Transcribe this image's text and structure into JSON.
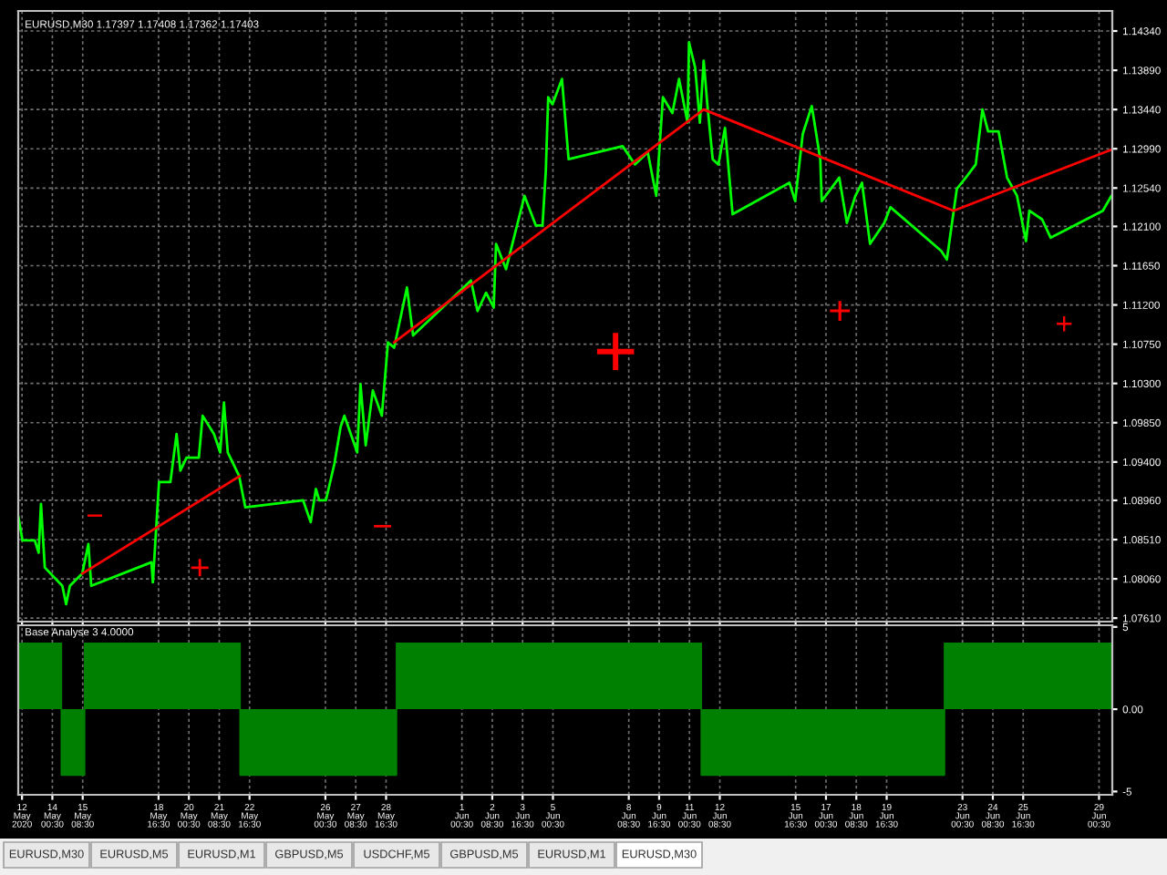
{
  "chart_data": [
    {
      "type": "line",
      "title": "EURUSD,M30 1.17397 1.17408 1.17362 1.17403",
      "xlim": [
        "2020-05-12T12:30",
        "2020-06-29T14:30"
      ],
      "ylim": [
        1.0757,
        1.1457
      ],
      "xticks": [
        {
          "value": "2020-05-12T16:30",
          "label": null
        },
        {
          "value": "2020-05-14T00:30",
          "label": null
        },
        {
          "value": "2020-05-15T08:30",
          "label": null
        },
        {
          "value": "2020-05-18T16:30",
          "label": null
        },
        {
          "value": "2020-05-20T00:30",
          "label": null
        },
        {
          "value": "2020-05-21T08:30",
          "label": null
        },
        {
          "value": "2020-05-22T16:30",
          "label": null
        },
        {
          "value": "2020-05-26T00:30",
          "label": null
        },
        {
          "value": "2020-05-27T08:30",
          "label": null
        },
        {
          "value": "2020-05-28T16:30",
          "label": null
        },
        {
          "value": "2020-06-01T00:30",
          "label": null
        },
        {
          "value": "2020-06-02T08:30",
          "label": null
        },
        {
          "value": "2020-06-03T16:30",
          "label": null
        },
        {
          "value": "2020-06-05T00:30",
          "label": null
        },
        {
          "value": "2020-06-08T08:30",
          "label": null
        },
        {
          "value": "2020-06-09T16:30",
          "label": null
        },
        {
          "value": "2020-06-11T00:30",
          "label": null
        },
        {
          "value": "2020-06-12T08:30",
          "label": null
        },
        {
          "value": "2020-06-15T16:30",
          "label": null
        },
        {
          "value": "2020-06-17T00:30",
          "label": null
        },
        {
          "value": "2020-06-18T08:30",
          "label": null
        },
        {
          "value": "2020-06-19T16:30",
          "label": null
        },
        {
          "value": "2020-06-23T00:30",
          "label": null
        },
        {
          "value": "2020-06-24T08:30",
          "label": null
        },
        {
          "value": "2020-06-25T16:30",
          "label": null
        },
        {
          "value": "2020-06-29T00:30",
          "label": null
        }
      ],
      "yticks": [
        {
          "value": 1.1434,
          "label": "1.14340"
        },
        {
          "value": 1.1389,
          "label": "1.13890"
        },
        {
          "value": 1.1344,
          "label": "1.13440"
        },
        {
          "value": 1.1299,
          "label": "1.12990"
        },
        {
          "value": 1.1254,
          "label": "1.12540"
        },
        {
          "value": 1.121,
          "label": "1.12100"
        },
        {
          "value": 1.1165,
          "label": "1.11650"
        },
        {
          "value": 1.112,
          "label": "1.11200"
        },
        {
          "value": 1.1075,
          "label": "1.10750"
        },
        {
          "value": 1.103,
          "label": "1.10300"
        },
        {
          "value": 1.0985,
          "label": "1.09850"
        },
        {
          "value": 1.094,
          "label": "1.09400"
        },
        {
          "value": 1.0896,
          "label": "1.08960"
        },
        {
          "value": 1.0851,
          "label": "1.08510"
        },
        {
          "value": 1.0806,
          "label": "1.08060"
        },
        {
          "value": 1.0761,
          "label": "1.07610"
        }
      ],
      "tick_labels": "y",
      "grid": true,
      "series": [
        {
          "color": "#00ff00",
          "x": [
            "2020-05-12T12:30",
            "2020-05-12T17:00",
            "2020-05-13T06:00",
            "2020-05-13T10:00",
            "2020-05-13T12:30",
            "2020-05-13T16:30",
            "2020-05-14T11:00",
            "2020-05-14T15:00",
            "2020-05-14T19:00",
            "2020-05-15T08:00",
            "2020-05-15T14:30",
            "2020-05-15T17:30",
            "2020-05-18T09:00",
            "2020-05-18T10:30",
            "2020-05-18T17:00",
            "2020-05-19T05:00",
            "2020-05-19T11:30",
            "2020-05-19T15:30",
            "2020-05-19T22:00",
            "2020-05-20T11:00",
            "2020-05-20T15:00",
            "2020-05-21T03:00",
            "2020-05-21T09:30",
            "2020-05-21T13:30",
            "2020-05-21T17:30",
            "2020-05-22T05:30",
            "2020-05-22T12:00",
            "2020-05-25T01:00",
            "2020-05-25T09:00",
            "2020-05-25T14:30",
            "2020-05-25T18:00",
            "2020-05-26T01:00",
            "2020-05-26T10:00",
            "2020-05-26T16:30",
            "2020-05-26T20:30",
            "2020-05-27T10:00",
            "2020-05-27T13:30",
            "2020-05-27T19:00",
            "2020-05-28T02:30",
            "2020-05-28T12:00",
            "2020-05-28T18:30",
            "2020-05-29T01:00",
            "2020-05-29T14:30",
            "2020-05-29T21:00",
            "2020-06-01T10:00",
            "2020-06-01T17:00",
            "2020-06-02T02:00",
            "2020-06-02T10:00",
            "2020-06-02T12:30",
            "2020-06-02T23:00",
            "2020-06-03T18:30",
            "2020-06-04T06:30",
            "2020-06-04T13:30",
            "2020-06-04T17:00",
            "2020-06-04T19:30",
            "2020-06-05T00:00",
            "2020-06-05T10:00",
            "2020-06-05T17:00",
            "2020-06-08T02:00",
            "2020-06-08T15:00",
            "2020-06-09T04:30",
            "2020-06-09T13:30",
            "2020-06-09T20:30",
            "2020-06-10T06:30",
            "2020-06-10T13:30",
            "2020-06-10T22:30",
            "2020-06-11T00:00",
            "2020-06-11T06:30",
            "2020-06-11T11:30",
            "2020-06-11T15:30",
            "2020-06-11T19:30",
            "2020-06-12T01:00",
            "2020-06-12T07:00",
            "2020-06-12T14:00",
            "2020-06-12T22:00",
            "2020-06-15T10:00",
            "2020-06-15T16:00",
            "2020-06-16T00:00",
            "2020-06-16T09:30",
            "2020-06-16T18:30",
            "2020-06-16T20:00",
            "2020-06-17T14:30",
            "2020-06-17T22:30",
            "2020-06-18T07:30",
            "2020-06-18T14:30",
            "2020-06-18T23:00",
            "2020-06-19T14:00",
            "2020-06-19T20:30",
            "2020-06-22T02:00",
            "2020-06-22T08:00",
            "2020-06-22T18:30",
            "2020-06-23T04:00",
            "2020-06-23T14:30",
            "2020-06-23T21:30",
            "2020-06-24T03:30",
            "2020-06-24T14:30",
            "2020-06-24T23:30",
            "2020-06-25T10:00",
            "2020-06-25T19:30",
            "2020-06-25T23:00",
            "2020-06-26T12:30",
            "2020-06-26T21:30",
            "2020-06-29T04:30",
            "2020-06-29T13:30"
          ],
          "values": [
            1.0878,
            1.085,
            1.085,
            1.0836,
            1.0892,
            1.0819,
            1.0798,
            1.0777,
            1.0798,
            1.0812,
            1.0846,
            1.0798,
            1.0825,
            1.0802,
            1.0917,
            1.0917,
            1.0972,
            1.093,
            1.0945,
            1.0945,
            1.0993,
            1.0972,
            1.0951,
            1.1008,
            1.0951,
            1.0924,
            1.0888,
            1.0896,
            1.0871,
            1.0909,
            1.0896,
            1.0896,
            1.0938,
            1.098,
            1.0993,
            1.0951,
            1.1029,
            1.0959,
            1.1022,
            1.0993,
            1.1077,
            1.1071,
            1.114,
            1.1085,
            1.1148,
            1.1113,
            1.1134,
            1.1117,
            1.119,
            1.1161,
            1.1245,
            1.1211,
            1.1211,
            1.1274,
            1.1358,
            1.135,
            1.1379,
            1.1287,
            1.1302,
            1.1281,
            1.1295,
            1.1245,
            1.1358,
            1.134,
            1.1379,
            1.1329,
            1.1421,
            1.1392,
            1.1329,
            1.14,
            1.1348,
            1.1287,
            1.1281,
            1.1323,
            1.1224,
            1.126,
            1.1239,
            1.1316,
            1.1348,
            1.1287,
            1.1239,
            1.1266,
            1.1214,
            1.1245,
            1.126,
            1.119,
            1.1214,
            1.1232,
            1.1182,
            1.1172,
            1.1253,
            1.1266,
            1.1281,
            1.1344,
            1.1319,
            1.1319,
            1.1266,
            1.1245,
            1.1193,
            1.1228,
            1.1218,
            1.1197,
            1.1228,
            1.1245
          ]
        },
        {
          "color": "#ff0000",
          "x": [
            "2020-05-15T08:00",
            "2020-05-22T06:30",
            "2020-05-26T16:30",
            "2020-05-29T01:00",
            "2020-06-11T15:30",
            "2020-06-22T15:00",
            "2020-06-29T13:30"
          ],
          "values": [
            1.0812,
            1.0924,
            null,
            1.1077,
            1.1344,
            1.1228,
            1.1298
          ]
        }
      ],
      "annotations": [
        "+",
        "+",
        "+",
        "+",
        "−",
        "−"
      ]
    },
    {
      "type": "area",
      "title": "Base Analyse 3 4.0000",
      "xlim": [
        "2020-05-12T12:30",
        "2020-06-29T14:30"
      ],
      "ylim": [
        -5.2,
        5.1
      ],
      "xticks": [
        {
          "value": "2020-05-12T16:30",
          "label": "12 May 2020"
        },
        {
          "value": "2020-05-14T00:30",
          "label": "14 May 00:30"
        },
        {
          "value": "2020-05-15T08:30",
          "label": "15 May 08:30"
        },
        {
          "value": "2020-05-18T16:30",
          "label": "18 May 16:30"
        },
        {
          "value": "2020-05-20T00:30",
          "label": "20 May 00:30"
        },
        {
          "value": "2020-05-21T08:30",
          "label": "21 May 08:30"
        },
        {
          "value": "2020-05-22T16:30",
          "label": "22 May 16:30"
        },
        {
          "value": "2020-05-26T00:30",
          "label": "26 May 00:30"
        },
        {
          "value": "2020-05-27T08:30",
          "label": "27 May 08:30"
        },
        {
          "value": "2020-05-28T16:30",
          "label": "28 May 16:30"
        },
        {
          "value": "2020-06-01T00:30",
          "label": "1 Jun 00:30"
        },
        {
          "value": "2020-06-02T08:30",
          "label": "2 Jun 08:30"
        },
        {
          "value": "2020-06-03T16:30",
          "label": "3 Jun 16:30"
        },
        {
          "value": "2020-06-05T00:30",
          "label": "5 Jun 00:30"
        },
        {
          "value": "2020-06-08T08:30",
          "label": "8 Jun 08:30"
        },
        {
          "value": "2020-06-09T16:30",
          "label": "9 Jun 16:30"
        },
        {
          "value": "2020-06-11T00:30",
          "label": "11 Jun 00:30"
        },
        {
          "value": "2020-06-12T08:30",
          "label": "12 Jun 08:30"
        },
        {
          "value": "2020-06-15T16:30",
          "label": "15 Jun 16:30"
        },
        {
          "value": "2020-06-17T00:30",
          "label": "17 Jun 00:30"
        },
        {
          "value": "2020-06-18T08:30",
          "label": "18 Jun 08:30"
        },
        {
          "value": "2020-06-19T16:30",
          "label": "19 Jun 16:30"
        },
        {
          "value": "2020-06-23T00:30",
          "label": "23 Jun 00:30"
        },
        {
          "value": "2020-06-24T08:30",
          "label": "24 Jun 08:30"
        },
        {
          "value": "2020-06-25T16:30",
          "label": "25 Jun 16:30"
        },
        {
          "value": "2020-06-29T00:30",
          "label": "29 Jun 00:30"
        }
      ],
      "yticks": [
        5,
        {
          "value": 0,
          "label": "0.00"
        },
        -5
      ],
      "grid": "x",
      "series": [
        {
          "color": "#008000",
          "x": [
            "2020-05-12T13:00",
            "2020-05-14T10:00",
            "2020-05-14T10:00",
            "2020-05-15T10:30",
            "2020-05-15T10:30",
            "2020-05-22T06:30",
            "2020-05-22T06:30",
            "2020-05-29T03:30",
            "2020-05-29T03:30",
            "2020-06-11T13:00",
            "2020-06-11T13:00",
            "2020-06-22T05:30",
            "2020-06-22T05:30",
            "2020-06-29T14:30"
          ],
          "values": [
            4,
            4,
            -4,
            -4,
            4,
            4,
            -4,
            -4,
            4,
            4,
            -4,
            -4,
            4,
            4
          ]
        }
      ],
      "annotations": [
        "EURUSD,M30",
        "EURUSD,M5",
        "EURUSD,M1",
        "GBPUSD,M5",
        "USDCHF,M5",
        "GBPUSD,M5",
        "EURUSD,M1",
        "EURUSD,M30"
      ]
    }
  ]
}
